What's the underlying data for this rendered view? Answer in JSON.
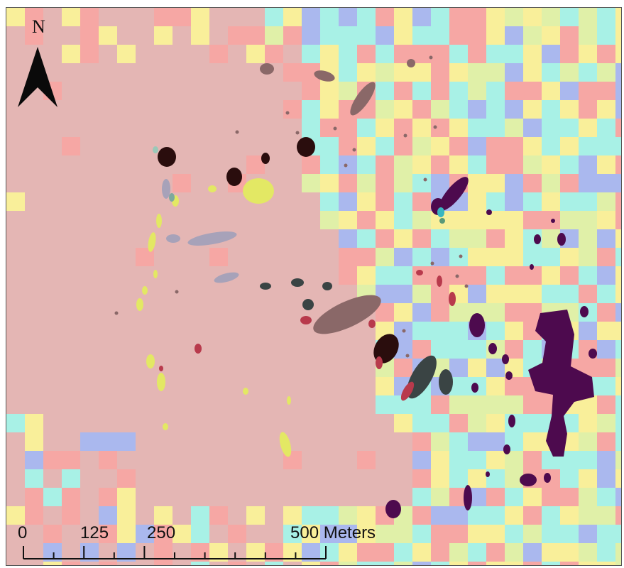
{
  "north_arrow": {
    "letter": "N"
  },
  "scale_bar": {
    "labels": [
      "0",
      "125",
      "250",
      "500 Meters"
    ]
  },
  "colors": {
    "background_raster": "#e4b6b4",
    "pink": "#f6a7a4",
    "yellow": "#f9ef9a",
    "cyan": "#a8f1e6",
    "blue": "#aab8ee",
    "lime": "#e0f0a8",
    "purple_cluster": "#4d0a4e",
    "dark_brown": "#2a0d0d",
    "slate": "#3a4444",
    "mauve": "#8a6868",
    "bright_yellow": "#e3e864",
    "crimson": "#b83a4c",
    "lavender_grey": "#a7a2b9"
  }
}
